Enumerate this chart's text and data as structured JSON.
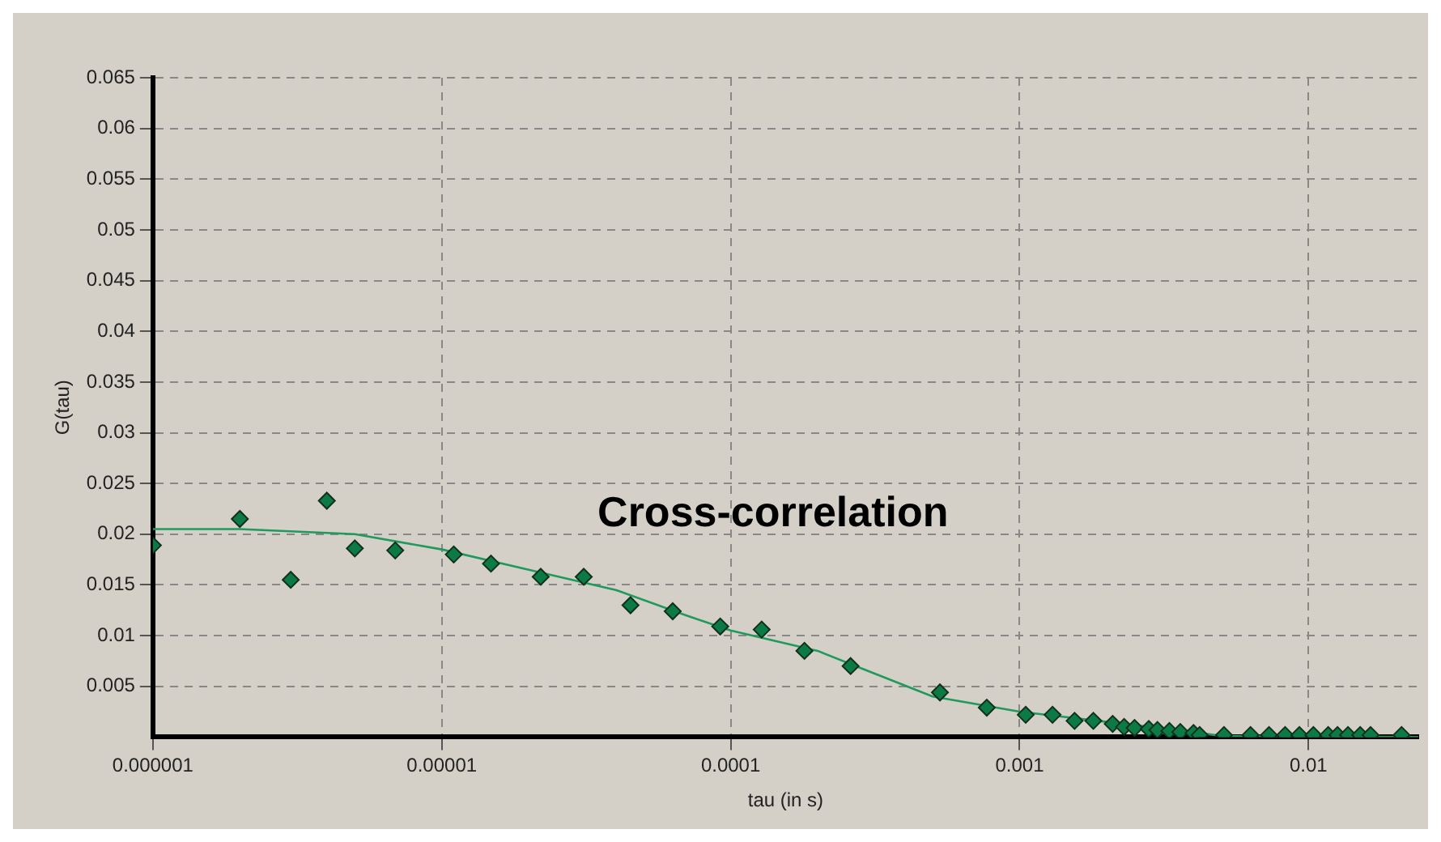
{
  "chart_data": {
    "type": "scatter",
    "xlabel": "tau (in s)",
    "ylabel": "G(tau)",
    "annotations": [
      "Cross-correlation"
    ],
    "log": "x",
    "grid": true,
    "marker": "diamond",
    "xlim": [
      1e-06,
      0.024
    ],
    "xticks": [
      {
        "value": 1e-06,
        "label": "0.000001"
      },
      {
        "value": 1e-05,
        "label": "0.00001"
      },
      {
        "value": 0.0001,
        "label": "0.0001"
      },
      {
        "value": 0.001,
        "label": "0.001"
      },
      {
        "value": 0.01,
        "label": "0.01"
      }
    ],
    "ylim": [
      0,
      0.065
    ],
    "yticks": [
      0.005,
      0.01,
      0.015,
      0.02,
      0.025,
      0.03,
      0.035,
      0.04,
      0.045,
      0.05,
      0.055,
      0.06,
      0.065
    ],
    "series": [
      {
        "color": "#0b7a45",
        "x": [
          1e-06,
          2e-06,
          3e-06,
          4e-06,
          5e-06,
          6.9e-06,
          1.1e-05,
          1.48e-05,
          2.2e-05,
          3.1e-05,
          4.5e-05,
          6.3e-05,
          9.2e-05,
          0.000128,
          0.00018,
          0.00026,
          0.00053,
          0.00077,
          0.00105,
          0.0013,
          0.00155,
          0.0018,
          0.0021,
          0.0023,
          0.0025,
          0.0028,
          0.003,
          0.0033,
          0.0036,
          0.004,
          0.0042,
          0.0051,
          0.0063,
          0.0073,
          0.0083,
          0.0093,
          0.0104,
          0.0117,
          0.0126,
          0.0137,
          0.0151,
          0.0164,
          0.021
        ],
        "values": [
          0.0189,
          0.0215,
          0.0155,
          0.0233,
          0.0186,
          0.0184,
          0.018,
          0.0171,
          0.0158,
          0.0158,
          0.013,
          0.0124,
          0.0109,
          0.0106,
          0.0085,
          0.007,
          0.0044,
          0.0029,
          0.0022,
          0.0022,
          0.0016,
          0.0016,
          0.0013,
          0.001,
          0.0009,
          0.0008,
          0.0007,
          0.0006,
          0.0005,
          0.0004,
          0.0002,
          0.0002,
          0.0002,
          0.0002,
          0.0002,
          0.0002,
          0.0002,
          0.0002,
          0.0002,
          0.0002,
          0.0002,
          0.0002,
          0.0002
        ]
      },
      {
        "type": "line",
        "marker": "none",
        "color": "#1f9a5c",
        "x": [
          1e-06,
          2e-06,
          5e-06,
          1e-05,
          2e-05,
          4e-05,
          7e-05,
          0.0001,
          0.0002,
          0.0003,
          0.0005,
          0.001,
          0.002,
          0.004,
          0.005,
          0.024
        ],
        "values": [
          0.0205,
          0.0205,
          0.02,
          0.0185,
          0.0165,
          0.0145,
          0.012,
          0.0105,
          0.0085,
          0.0065,
          0.004,
          0.0025,
          0.0015,
          0.0005,
          0.0001,
          0
        ]
      }
    ]
  }
}
